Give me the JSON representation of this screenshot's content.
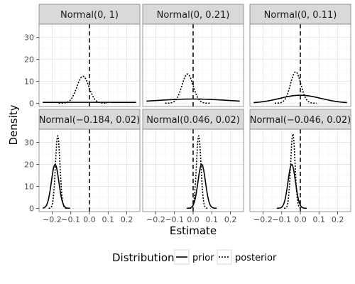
{
  "chart_data": {
    "type": "line",
    "xlabel": "Estimate",
    "ylabel": "Density",
    "xlim": [
      -0.27,
      0.27
    ],
    "ylim": [
      -1.5,
      36
    ],
    "x_ticks": [
      -0.2,
      -0.1,
      0.0,
      0.1,
      0.2
    ],
    "x_tick_labels": [
      "−0.2",
      "−0.1",
      "0.0",
      "0.1",
      "0.2"
    ],
    "y_ticks": [
      0,
      10,
      20,
      30
    ],
    "y_tick_labels": [
      "0",
      "10",
      "20",
      "30"
    ],
    "reference_line": {
      "x": 0,
      "style": "dashed"
    },
    "grid": true,
    "layout": {
      "rows": 2,
      "cols": 3
    },
    "legend": {
      "title": "Distribution",
      "position": "bottom",
      "entries": [
        {
          "label": "prior",
          "linestyle": "solid"
        },
        {
          "label": "posterior",
          "linestyle": "dotted"
        }
      ]
    },
    "panels": [
      {
        "label": "Normal(0, 1)",
        "prior": {
          "mean": 0,
          "sd": 1
        },
        "posterior": {
          "mean": -0.035,
          "sd": 0.0325
        }
      },
      {
        "label": "Normal(0, 0.21)",
        "prior": {
          "mean": 0,
          "sd": 0.21
        },
        "posterior": {
          "mean": -0.03,
          "sd": 0.03
        }
      },
      {
        "label": "Normal(0, 0.11)",
        "prior": {
          "mean": 0,
          "sd": 0.11
        },
        "posterior": {
          "mean": -0.025,
          "sd": 0.028
        }
      },
      {
        "label": "Normal(−0.184, 0.02)",
        "prior": {
          "mean": -0.184,
          "sd": 0.02
        },
        "posterior": {
          "mean": -0.17,
          "sd": 0.0121
        }
      },
      {
        "label": "Normal(0.046, 0.02)",
        "prior": {
          "mean": 0.046,
          "sd": 0.02
        },
        "posterior": {
          "mean": 0.03,
          "sd": 0.0121
        }
      },
      {
        "label": "Normal(−0.046, 0.02)",
        "prior": {
          "mean": -0.046,
          "sd": 0.02
        },
        "posterior": {
          "mean": -0.04,
          "sd": 0.0118
        }
      }
    ]
  }
}
